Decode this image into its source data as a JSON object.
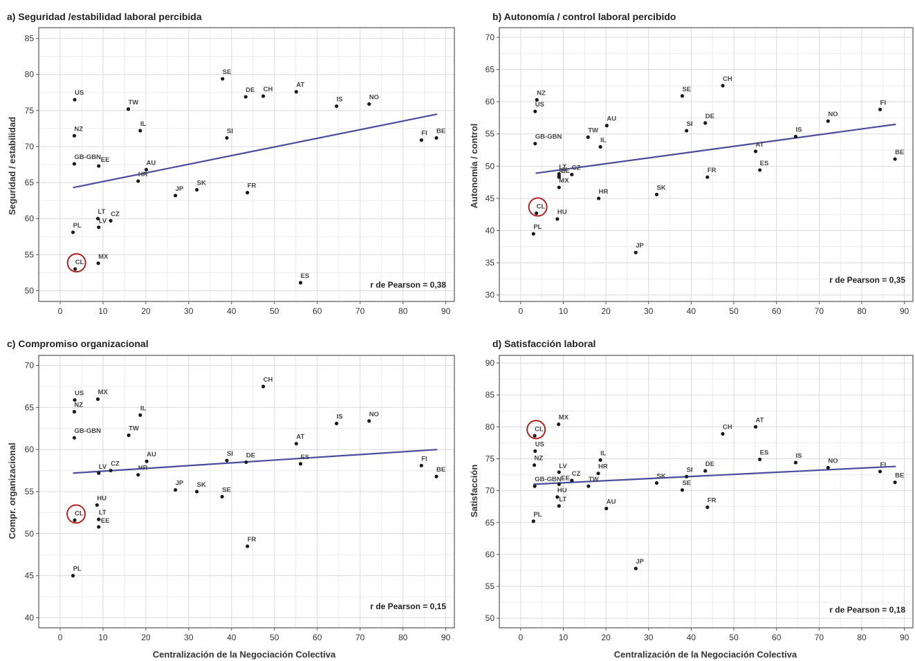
{
  "figure": {
    "x_axis_label": "Centralización de la Negociación Colectiva"
  },
  "colors": {
    "trend_line": "#4b4b9b",
    "points": "#1a1a1a",
    "highlight_circle": "#b22222",
    "grid": "#d9d9d9"
  },
  "chart_data": [
    {
      "type": "scatter",
      "title": "a) Seguridad /estabilidad laboral percibida",
      "ylabel": "Seguridad / estabilidad",
      "xlabel": "",
      "xlim": [
        -5,
        92
      ],
      "ylim": [
        48.5,
        86.5
      ],
      "xticks": [
        0,
        10,
        20,
        30,
        40,
        50,
        60,
        70,
        80,
        90
      ],
      "yticks": [
        50,
        55,
        60,
        65,
        70,
        75,
        80,
        85
      ],
      "pearson_label": "r de Pearson = 0,38",
      "trend": {
        "x": [
          3,
          88
        ],
        "y": [
          64.3,
          74.5
        ]
      },
      "highlight": "CL",
      "grid": true,
      "points": [
        {
          "label": "US",
          "x": 3.4,
          "y": 76.5
        },
        {
          "label": "NZ",
          "x": 3.3,
          "y": 71.5
        },
        {
          "label": "GB-GBN",
          "x": 3.3,
          "y": 67.6
        },
        {
          "label": "EE",
          "x": 9.0,
          "y": 67.3
        },
        {
          "label": "PL",
          "x": 3.0,
          "y": 58.1
        },
        {
          "label": "CL",
          "x": 3.5,
          "y": 53.0
        },
        {
          "label": "LT",
          "x": 8.8,
          "y": 60.0
        },
        {
          "label": "LV",
          "x": 9.0,
          "y": 58.8
        },
        {
          "label": "CZ",
          "x": 11.8,
          "y": 59.7
        },
        {
          "label": "MX",
          "x": 8.9,
          "y": 53.8
        },
        {
          "label": "TW",
          "x": 15.9,
          "y": 75.2
        },
        {
          "label": "IL",
          "x": 18.7,
          "y": 72.2
        },
        {
          "label": "AU",
          "x": 20.1,
          "y": 66.8
        },
        {
          "label": "HR",
          "x": 18.2,
          "y": 65.2
        },
        {
          "label": "JP",
          "x": 26.9,
          "y": 63.2
        },
        {
          "label": "SK",
          "x": 31.9,
          "y": 64.0
        },
        {
          "label": "SE",
          "x": 37.9,
          "y": 79.4
        },
        {
          "label": "DE",
          "x": 43.3,
          "y": 76.9
        },
        {
          "label": "CH",
          "x": 47.4,
          "y": 77.0
        },
        {
          "label": "SI",
          "x": 38.9,
          "y": 71.2
        },
        {
          "label": "FR",
          "x": 43.7,
          "y": 63.6
        },
        {
          "label": "AT",
          "x": 55.1,
          "y": 77.6
        },
        {
          "label": "ES",
          "x": 56.1,
          "y": 51.1
        },
        {
          "label": "IS",
          "x": 64.5,
          "y": 75.6
        },
        {
          "label": "NO",
          "x": 72.1,
          "y": 75.9
        },
        {
          "label": "FI",
          "x": 84.3,
          "y": 70.9
        },
        {
          "label": "BE",
          "x": 87.8,
          "y": 71.2
        }
      ]
    },
    {
      "type": "scatter",
      "title": "b) Autonomía / control laboral percibido",
      "ylabel": "Autonomía / control",
      "xlabel": "",
      "xlim": [
        -5,
        92
      ],
      "ylim": [
        29,
        71.5
      ],
      "xticks": [
        0,
        10,
        20,
        30,
        40,
        50,
        60,
        70,
        80,
        90
      ],
      "yticks": [
        30,
        35,
        40,
        45,
        50,
        55,
        60,
        65,
        70
      ],
      "pearson_label": "r de Pearson = 0,35",
      "trend": {
        "x": [
          3.5,
          88
        ],
        "y": [
          48.9,
          56.5
        ]
      },
      "highlight": "CL",
      "grid": true,
      "points": [
        {
          "label": "NZ",
          "x": 3.8,
          "y": 60.3
        },
        {
          "label": "US",
          "x": 3.4,
          "y": 58.5
        },
        {
          "label": "GB-GBN",
          "x": 3.4,
          "y": 53.5
        },
        {
          "label": "CL",
          "x": 3.7,
          "y": 42.7
        },
        {
          "label": "PL",
          "x": 3.0,
          "y": 39.5
        },
        {
          "label": "LT",
          "x": 9.0,
          "y": 48.8
        },
        {
          "label": "LV",
          "x": 9.0,
          "y": 48.5
        },
        {
          "label": "EE",
          "x": 9.0,
          "y": 48.3
        },
        {
          "label": "CZ",
          "x": 12.0,
          "y": 48.7
        },
        {
          "label": "MX",
          "x": 9.0,
          "y": 46.7
        },
        {
          "label": "HU",
          "x": 8.6,
          "y": 41.8
        },
        {
          "label": "TW",
          "x": 15.8,
          "y": 54.5
        },
        {
          "label": "AU",
          "x": 20.2,
          "y": 56.3
        },
        {
          "label": "IL",
          "x": 18.7,
          "y": 53.0
        },
        {
          "label": "HR",
          "x": 18.3,
          "y": 45.0
        },
        {
          "label": "JP",
          "x": 27.0,
          "y": 36.6
        },
        {
          "label": "SK",
          "x": 31.9,
          "y": 45.6
        },
        {
          "label": "SE",
          "x": 37.9,
          "y": 60.9
        },
        {
          "label": "SI",
          "x": 38.9,
          "y": 55.5
        },
        {
          "label": "DE",
          "x": 43.3,
          "y": 56.7
        },
        {
          "label": "CH",
          "x": 47.4,
          "y": 62.5
        },
        {
          "label": "FR",
          "x": 43.8,
          "y": 48.3
        },
        {
          "label": "AT",
          "x": 55.1,
          "y": 52.3
        },
        {
          "label": "ES",
          "x": 56.1,
          "y": 49.4
        },
        {
          "label": "IS",
          "x": 64.5,
          "y": 54.6
        },
        {
          "label": "NO",
          "x": 72.1,
          "y": 57.0
        },
        {
          "label": "FI",
          "x": 84.3,
          "y": 58.8
        },
        {
          "label": "BE",
          "x": 87.8,
          "y": 51.1
        }
      ]
    },
    {
      "type": "scatter",
      "title": "c) Compromiso organizacional",
      "ylabel": "Compr. organizacional",
      "xlabel": "Centralización de la Negociación Colectiva",
      "xlim": [
        -5,
        92
      ],
      "ylim": [
        38.8,
        71.2
      ],
      "xticks": [
        0,
        10,
        20,
        30,
        40,
        50,
        60,
        70,
        80,
        90
      ],
      "yticks": [
        40,
        45,
        50,
        55,
        60,
        65,
        70
      ],
      "pearson_label": "r de Pearson = 0,15",
      "trend": {
        "x": [
          3,
          88
        ],
        "y": [
          57.2,
          60.0
        ]
      },
      "highlight": "CL",
      "grid": true,
      "points": [
        {
          "label": "US",
          "x": 3.4,
          "y": 65.9
        },
        {
          "label": "NZ",
          "x": 3.3,
          "y": 64.5
        },
        {
          "label": "GB-GBN",
          "x": 3.3,
          "y": 61.4
        },
        {
          "label": "CL",
          "x": 3.4,
          "y": 51.6
        },
        {
          "label": "PL",
          "x": 3.0,
          "y": 45.0
        },
        {
          "label": "MX",
          "x": 8.8,
          "y": 66.0
        },
        {
          "label": "LV",
          "x": 9.0,
          "y": 57.2
        },
        {
          "label": "CZ",
          "x": 11.8,
          "y": 57.5
        },
        {
          "label": "HU",
          "x": 8.6,
          "y": 53.4
        },
        {
          "label": "LT",
          "x": 9.0,
          "y": 51.7
        },
        {
          "label": "EE",
          "x": 9.0,
          "y": 50.8
        },
        {
          "label": "IL",
          "x": 18.7,
          "y": 64.1
        },
        {
          "label": "TW",
          "x": 16.0,
          "y": 61.7
        },
        {
          "label": "AU",
          "x": 20.2,
          "y": 58.6
        },
        {
          "label": "HR",
          "x": 18.2,
          "y": 57.0
        },
        {
          "label": "JP",
          "x": 26.9,
          "y": 55.2
        },
        {
          "label": "SK",
          "x": 31.9,
          "y": 55.0
        },
        {
          "label": "SE",
          "x": 37.8,
          "y": 54.4
        },
        {
          "label": "SI",
          "x": 38.9,
          "y": 58.7
        },
        {
          "label": "DE",
          "x": 43.4,
          "y": 58.5
        },
        {
          "label": "CH",
          "x": 47.4,
          "y": 67.5
        },
        {
          "label": "FR",
          "x": 43.7,
          "y": 48.5
        },
        {
          "label": "AT",
          "x": 55.1,
          "y": 60.7
        },
        {
          "label": "ES",
          "x": 56.1,
          "y": 58.3
        },
        {
          "label": "IS",
          "x": 64.5,
          "y": 63.1
        },
        {
          "label": "NO",
          "x": 72.1,
          "y": 63.4
        },
        {
          "label": "FI",
          "x": 84.3,
          "y": 58.1
        },
        {
          "label": "BE",
          "x": 87.8,
          "y": 56.8
        }
      ]
    },
    {
      "type": "scatter",
      "title": "d) Satisfacción laboral",
      "ylabel": "Satisfacción",
      "xlabel": "Centralización de la Negociación Colectiva",
      "xlim": [
        -5,
        92
      ],
      "ylim": [
        48.5,
        91.2
      ],
      "xticks": [
        0,
        10,
        20,
        30,
        40,
        50,
        60,
        70,
        80,
        90
      ],
      "yticks": [
        50,
        55,
        60,
        65,
        70,
        75,
        80,
        85,
        90
      ],
      "pearson_label": "r de Pearson = 0,18",
      "trend": {
        "x": [
          3,
          88
        ],
        "y": [
          71.0,
          73.8
        ]
      },
      "highlight": "CL",
      "grid": true,
      "points": [
        {
          "label": "CL",
          "x": 3.3,
          "y": 78.6
        },
        {
          "label": "US",
          "x": 3.4,
          "y": 76.2
        },
        {
          "label": "NZ",
          "x": 3.2,
          "y": 74.0
        },
        {
          "label": "GB-GBN",
          "x": 3.3,
          "y": 70.7
        },
        {
          "label": "PL",
          "x": 3.0,
          "y": 65.2
        },
        {
          "label": "MX",
          "x": 8.9,
          "y": 80.4
        },
        {
          "label": "LV",
          "x": 9.0,
          "y": 72.9
        },
        {
          "label": "EE",
          "x": 9.0,
          "y": 71.0
        },
        {
          "label": "CZ",
          "x": 12.0,
          "y": 71.6
        },
        {
          "label": "HU",
          "x": 8.6,
          "y": 69.0
        },
        {
          "label": "LT",
          "x": 9.0,
          "y": 67.6
        },
        {
          "label": "IL",
          "x": 18.7,
          "y": 74.8
        },
        {
          "label": "HR",
          "x": 18.2,
          "y": 72.7
        },
        {
          "label": "TW",
          "x": 15.9,
          "y": 70.7
        },
        {
          "label": "AU",
          "x": 20.1,
          "y": 67.2
        },
        {
          "label": "JP",
          "x": 27.0,
          "y": 57.8
        },
        {
          "label": "SK",
          "x": 31.9,
          "y": 71.2
        },
        {
          "label": "SI",
          "x": 38.9,
          "y": 72.2
        },
        {
          "label": "SE",
          "x": 37.9,
          "y": 70.1
        },
        {
          "label": "DE",
          "x": 43.3,
          "y": 73.1
        },
        {
          "label": "CH",
          "x": 47.4,
          "y": 78.9
        },
        {
          "label": "FR",
          "x": 43.8,
          "y": 67.4
        },
        {
          "label": "AT",
          "x": 55.1,
          "y": 80.0
        },
        {
          "label": "ES",
          "x": 56.1,
          "y": 74.9
        },
        {
          "label": "IS",
          "x": 64.5,
          "y": 74.4
        },
        {
          "label": "NO",
          "x": 72.1,
          "y": 73.6
        },
        {
          "label": "FI",
          "x": 84.3,
          "y": 73.0
        },
        {
          "label": "BE",
          "x": 87.8,
          "y": 71.3
        }
      ]
    }
  ]
}
